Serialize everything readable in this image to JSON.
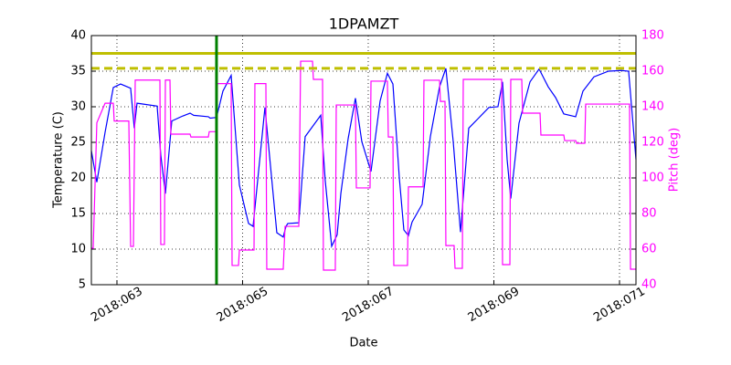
{
  "chart_data": {
    "type": "line",
    "title": "1DPAMZT",
    "xlabel": "Date",
    "ylabel": "Temperature (C)",
    "y2label": "Pitch (deg)",
    "y2color": "#ff00ff",
    "grid": true,
    "xlim": [
      62.593,
      71.262
    ],
    "xticks": [
      {
        "value": 63,
        "label": "2018:063"
      },
      {
        "value": 65,
        "label": "2018:065"
      },
      {
        "value": 67,
        "label": "2018:067"
      },
      {
        "value": 69,
        "label": "2018:069"
      },
      {
        "value": 71,
        "label": "2018:071"
      }
    ],
    "ylim": [
      5,
      40
    ],
    "yticks": [
      5,
      10,
      15,
      20,
      25,
      30,
      35,
      40
    ],
    "y2lim": [
      40,
      180
    ],
    "y2ticks": [
      40,
      60,
      80,
      100,
      120,
      140,
      160,
      180
    ],
    "hlines": [
      {
        "value": 37.5,
        "color": "#bfbf00",
        "style": "solid"
      },
      {
        "value": 35.4,
        "color": "#bfbf00",
        "style": "dashed"
      }
    ],
    "vlines": [
      {
        "value": 64.585,
        "color": "#008000",
        "style": "solid"
      }
    ],
    "series": [
      {
        "color": "#0000ff",
        "axis": "y",
        "x": [
          62.593,
          62.68,
          62.811,
          62.942,
          63.058,
          63.218,
          63.276,
          63.32,
          63.64,
          63.698,
          63.771,
          63.873,
          64.047,
          64.164,
          64.222,
          64.455,
          64.484,
          64.585,
          64.687,
          64.818,
          64.949,
          65.095,
          65.167,
          65.356,
          65.545,
          65.647,
          65.691,
          65.72,
          65.895,
          65.996,
          66.244,
          66.316,
          66.418,
          66.505,
          66.564,
          66.68,
          66.796,
          66.898,
          67.044,
          67.189,
          67.305,
          67.393,
          67.495,
          67.567,
          67.64,
          67.698,
          67.858,
          67.989,
          68.135,
          68.236,
          68.353,
          68.469,
          68.6,
          68.745,
          68.92,
          69.065,
          69.138,
          69.211,
          69.269,
          69.4,
          69.575,
          69.72,
          69.865,
          69.982,
          70.113,
          70.302,
          70.418,
          70.593,
          70.825,
          71.029,
          71.145,
          71.262
        ],
        "values": [
          23.8,
          19.4,
          26.4,
          32.7,
          33.2,
          32.6,
          27,
          30.5,
          30.1,
          23.2,
          17.8,
          28,
          28.7,
          29.1,
          28.8,
          28.6,
          28.4,
          28.5,
          32.2,
          34.4,
          19,
          13.6,
          13.2,
          29.9,
          12.3,
          11.7,
          13.2,
          13.6,
          13.7,
          25.8,
          28.8,
          19.6,
          10.4,
          12,
          17.8,
          25.5,
          31.2,
          25.1,
          20.9,
          30.8,
          34.7,
          33.2,
          20,
          12.7,
          11.9,
          13.8,
          16.3,
          25.8,
          32.8,
          35.4,
          25.1,
          12.4,
          27,
          28.3,
          29.9,
          30,
          33.5,
          22.6,
          17.1,
          27.7,
          33.5,
          35.3,
          32.8,
          31.3,
          29,
          28.6,
          32.2,
          34.2,
          35,
          35.1,
          35,
          22.6
        ]
      },
      {
        "color": "#ff00ff",
        "axis": "y2",
        "x": [
          62.593,
          62.622,
          62.68,
          62.811,
          62.942,
          62.956,
          63.189,
          63.218,
          63.262,
          63.291,
          63.684,
          63.698,
          63.756,
          63.771,
          63.844,
          63.858,
          64.164,
          64.178,
          64.455,
          64.469,
          64.585,
          64.6,
          64.818,
          64.833,
          64.935,
          64.949,
          65.182,
          65.196,
          65.371,
          65.385,
          65.647,
          65.676,
          65.895,
          65.924,
          66.113,
          66.127,
          66.273,
          66.287,
          66.476,
          66.491,
          66.796,
          66.811,
          67.029,
          67.044,
          67.305,
          67.32,
          67.393,
          67.407,
          67.625,
          67.64,
          67.873,
          67.887,
          68.135,
          68.149,
          68.222,
          68.236,
          68.367,
          68.382,
          68.498,
          68.513,
          69.124,
          69.138,
          69.255,
          69.269,
          69.444,
          69.458,
          69.735,
          69.749,
          70.113,
          70.127,
          70.302,
          70.316,
          70.447,
          70.462,
          71.16,
          71.175,
          71.262
        ],
        "values": [
          60.5,
          60.5,
          131,
          142,
          142,
          132,
          132,
          61.5,
          61.5,
          155,
          155,
          62.6,
          62.6,
          155,
          155,
          124.6,
          124.6,
          123,
          123,
          126,
          126,
          153,
          153,
          50.8,
          50.8,
          59.5,
          59.5,
          153,
          153,
          48.7,
          48.7,
          72.8,
          72.8,
          165.6,
          165.6,
          155.4,
          155.4,
          48.2,
          48.2,
          141,
          141,
          94.4,
          94.4,
          154.4,
          154.4,
          123,
          123,
          50.8,
          50.8,
          95,
          95,
          154.9,
          154.9,
          143,
          143,
          62,
          62,
          49.2,
          49.2,
          155.4,
          155.4,
          51.3,
          51.3,
          155.4,
          155.4,
          136.4,
          136.4,
          124.1,
          124.1,
          121,
          121,
          119.5,
          119.5,
          141.5,
          141.5,
          48.7,
          48.7
        ]
      }
    ]
  }
}
